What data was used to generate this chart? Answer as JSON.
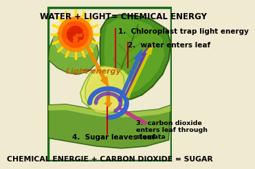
{
  "title_top": "WATER + LIGHT= CHEMICAL ENERGY",
  "title_bottom": "CHEMICAL ENERGIE + CARBON DIOXIDE = SUGAR",
  "border_color": "#1a6b1a",
  "bg_color": "#f0ead0",
  "fig_width": 3.03,
  "fig_height": 3.77,
  "labels": {
    "light_energy": "Light energy",
    "step1": "1.  Chloroplast trap light energy",
    "step2": "2.  water enters leaf",
    "step3": "3.  carbon dioxide\nenters leaf through\nstomata",
    "step4": "4.  Sugar leaves leaf"
  },
  "colors": {
    "sun_outer": "#ff8800",
    "sun_mid": "#ff5500",
    "sun_inner": "#dd2200",
    "sun_ray": "#ffdd00",
    "leaf_main": "#4a9020",
    "leaf_highlight": "#88cc30",
    "leaf_dark": "#2d6010",
    "leaf_left": "#6aaa28",
    "leaf_bottom": "#5a9820",
    "cross_section": "#d8ee60",
    "cross_dark": "#8aaa20",
    "stem_yellow": "#e8e060",
    "arrow_orange": "#ee8800",
    "arrow_blue": "#3366cc",
    "arrow_purple": "#6633bb",
    "arrow_pink": "#cc3388",
    "arrow_red": "#cc0000",
    "light_text": "#bb6600"
  }
}
